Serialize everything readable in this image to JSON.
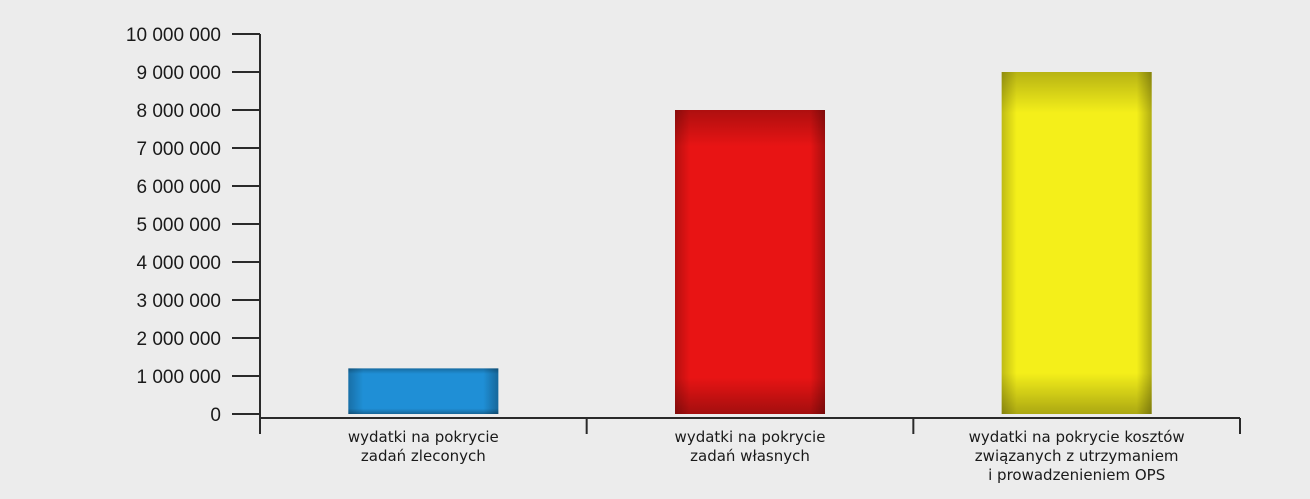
{
  "chart_data": {
    "type": "bar",
    "categories": [
      [
        "wydatki na pokrycie",
        "zadań zleconych"
      ],
      [
        "wydatki na pokrycie",
        "zadań własnych"
      ],
      [
        "wydatki na pokrycie kosztów",
        "związanych z utrzymaniem",
        "i prowadzenieniem OPS"
      ]
    ],
    "values": [
      1200000,
      8000000,
      9000000
    ],
    "colors": [
      "#1f8fd6",
      "#e81414",
      "#f4ef1a"
    ],
    "ylim": [
      0,
      10000000
    ],
    "yticks": [
      0,
      1000000,
      2000000,
      3000000,
      4000000,
      5000000,
      6000000,
      7000000,
      8000000,
      9000000,
      10000000
    ],
    "ytick_labels": [
      "0",
      "1 000 000",
      "2 000 000",
      "3 000 000",
      "4 000 000",
      "5 000 000",
      "6 000 000",
      "7 000 000",
      "8 000 000",
      "9 000 000",
      "10 000 000"
    ],
    "title": "",
    "xlabel": "",
    "ylabel": "",
    "grid": false,
    "legend": "none"
  }
}
